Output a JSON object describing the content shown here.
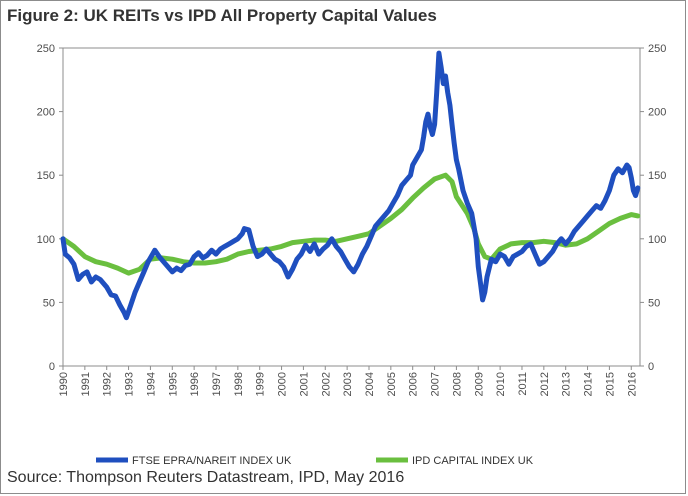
{
  "title": "Figure 2: UK REITs vs IPD All Property Capital Values",
  "source": "Source: Thompson Reuters Datastream, IPD, May 2016",
  "chart_data": {
    "type": "line",
    "title": "Figure 2: UK REITs vs IPD All Property Capital Values",
    "xlabel": "",
    "ylabel": "",
    "xlim": [
      1990,
      2016.4
    ],
    "ylim": [
      0,
      250
    ],
    "y_ticks": [
      0,
      50,
      100,
      150,
      200,
      250
    ],
    "x_ticks": [
      "1990",
      "1991",
      "1992",
      "1993",
      "1994",
      "1995",
      "1996",
      "1997",
      "1998",
      "1999",
      "2000",
      "2001",
      "2002",
      "2003",
      "2004",
      "2005",
      "2006",
      "2007",
      "2008",
      "2009",
      "2010",
      "2011",
      "2012",
      "2013",
      "2014",
      "2015",
      "2016"
    ],
    "y_axis_secondary": true,
    "grid": false,
    "legend_position": "bottom",
    "series": [
      {
        "name": "FTSE EPRA/NAREIT INDEX UK",
        "color": "#1f4fbf",
        "points": [
          [
            1990.0,
            100
          ],
          [
            1990.1,
            88
          ],
          [
            1990.3,
            85
          ],
          [
            1990.5,
            80
          ],
          [
            1990.7,
            68
          ],
          [
            1990.9,
            72
          ],
          [
            1991.1,
            74
          ],
          [
            1991.3,
            66
          ],
          [
            1991.5,
            70
          ],
          [
            1991.7,
            68
          ],
          [
            1992.0,
            62
          ],
          [
            1992.2,
            56
          ],
          [
            1992.4,
            55
          ],
          [
            1992.6,
            48
          ],
          [
            1992.8,
            42
          ],
          [
            1992.9,
            38
          ],
          [
            1993.1,
            48
          ],
          [
            1993.3,
            58
          ],
          [
            1993.5,
            66
          ],
          [
            1993.7,
            74
          ],
          [
            1993.9,
            82
          ],
          [
            1994.1,
            88
          ],
          [
            1994.2,
            91
          ],
          [
            1994.4,
            86
          ],
          [
            1994.6,
            82
          ],
          [
            1994.8,
            78
          ],
          [
            1995.0,
            74
          ],
          [
            1995.2,
            77
          ],
          [
            1995.4,
            75
          ],
          [
            1995.6,
            79
          ],
          [
            1995.8,
            80
          ],
          [
            1996.0,
            86
          ],
          [
            1996.2,
            89
          ],
          [
            1996.4,
            85
          ],
          [
            1996.6,
            87
          ],
          [
            1996.8,
            91
          ],
          [
            1997.0,
            88
          ],
          [
            1997.2,
            92
          ],
          [
            1997.4,
            94
          ],
          [
            1997.6,
            96
          ],
          [
            1997.8,
            98
          ],
          [
            1998.0,
            100
          ],
          [
            1998.2,
            104
          ],
          [
            1998.3,
            108
          ],
          [
            1998.5,
            107
          ],
          [
            1998.7,
            94
          ],
          [
            1998.9,
            86
          ],
          [
            1999.1,
            88
          ],
          [
            1999.3,
            92
          ],
          [
            1999.5,
            88
          ],
          [
            1999.7,
            84
          ],
          [
            1999.9,
            82
          ],
          [
            2000.1,
            78
          ],
          [
            2000.3,
            70
          ],
          [
            2000.5,
            76
          ],
          [
            2000.7,
            84
          ],
          [
            2000.9,
            88
          ],
          [
            2001.1,
            95
          ],
          [
            2001.3,
            90
          ],
          [
            2001.5,
            96
          ],
          [
            2001.7,
            88
          ],
          [
            2001.9,
            92
          ],
          [
            2002.1,
            95
          ],
          [
            2002.3,
            100
          ],
          [
            2002.5,
            94
          ],
          [
            2002.7,
            90
          ],
          [
            2002.9,
            84
          ],
          [
            2003.1,
            78
          ],
          [
            2003.3,
            74
          ],
          [
            2003.5,
            80
          ],
          [
            2003.7,
            88
          ],
          [
            2003.9,
            94
          ],
          [
            2004.1,
            102
          ],
          [
            2004.3,
            110
          ],
          [
            2004.5,
            114
          ],
          [
            2004.7,
            118
          ],
          [
            2004.9,
            122
          ],
          [
            2005.1,
            128
          ],
          [
            2005.3,
            134
          ],
          [
            2005.5,
            142
          ],
          [
            2005.7,
            146
          ],
          [
            2005.9,
            150
          ],
          [
            2006.0,
            158
          ],
          [
            2006.2,
            164
          ],
          [
            2006.4,
            170
          ],
          [
            2006.5,
            180
          ],
          [
            2006.6,
            192
          ],
          [
            2006.7,
            198
          ],
          [
            2006.8,
            188
          ],
          [
            2006.9,
            182
          ],
          [
            2007.0,
            190
          ],
          [
            2007.1,
            215
          ],
          [
            2007.2,
            246
          ],
          [
            2007.3,
            235
          ],
          [
            2007.4,
            222
          ],
          [
            2007.5,
            228
          ],
          [
            2007.6,
            215
          ],
          [
            2007.7,
            205
          ],
          [
            2007.8,
            190
          ],
          [
            2007.9,
            175
          ],
          [
            2008.0,
            162
          ],
          [
            2008.1,
            155
          ],
          [
            2008.3,
            138
          ],
          [
            2008.5,
            128
          ],
          [
            2008.7,
            120
          ],
          [
            2008.9,
            100
          ],
          [
            2009.0,
            78
          ],
          [
            2009.1,
            65
          ],
          [
            2009.2,
            52
          ],
          [
            2009.3,
            58
          ],
          [
            2009.4,
            70
          ],
          [
            2009.6,
            84
          ],
          [
            2009.8,
            82
          ],
          [
            2010.0,
            88
          ],
          [
            2010.2,
            86
          ],
          [
            2010.4,
            80
          ],
          [
            2010.6,
            86
          ],
          [
            2010.8,
            88
          ],
          [
            2011.0,
            90
          ],
          [
            2011.2,
            94
          ],
          [
            2011.4,
            96
          ],
          [
            2011.6,
            88
          ],
          [
            2011.8,
            80
          ],
          [
            2012.0,
            82
          ],
          [
            2012.2,
            86
          ],
          [
            2012.4,
            90
          ],
          [
            2012.6,
            96
          ],
          [
            2012.8,
            100
          ],
          [
            2013.0,
            96
          ],
          [
            2013.2,
            100
          ],
          [
            2013.4,
            106
          ],
          [
            2013.6,
            110
          ],
          [
            2013.8,
            114
          ],
          [
            2014.0,
            118
          ],
          [
            2014.2,
            122
          ],
          [
            2014.4,
            126
          ],
          [
            2014.6,
            124
          ],
          [
            2014.8,
            130
          ],
          [
            2015.0,
            138
          ],
          [
            2015.2,
            150
          ],
          [
            2015.4,
            155
          ],
          [
            2015.6,
            152
          ],
          [
            2015.8,
            158
          ],
          [
            2015.9,
            156
          ],
          [
            2016.0,
            148
          ],
          [
            2016.1,
            138
          ],
          [
            2016.2,
            134
          ],
          [
            2016.3,
            140
          ]
        ]
      },
      {
        "name": "IPD CAPITAL INDEX UK",
        "color": "#6abf3f",
        "points": [
          [
            1990.0,
            100
          ],
          [
            1990.5,
            94
          ],
          [
            1991.0,
            86
          ],
          [
            1991.5,
            82
          ],
          [
            1992.0,
            80
          ],
          [
            1992.5,
            77
          ],
          [
            1993.0,
            73
          ],
          [
            1993.5,
            76
          ],
          [
            1994.0,
            84
          ],
          [
            1994.5,
            85
          ],
          [
            1995.0,
            84
          ],
          [
            1995.5,
            82
          ],
          [
            1996.0,
            81
          ],
          [
            1996.5,
            81
          ],
          [
            1997.0,
            82
          ],
          [
            1997.5,
            84
          ],
          [
            1998.0,
            88
          ],
          [
            1998.5,
            90
          ],
          [
            1999.0,
            91
          ],
          [
            1999.5,
            92
          ],
          [
            2000.0,
            94
          ],
          [
            2000.5,
            97
          ],
          [
            2001.0,
            98
          ],
          [
            2001.5,
            99
          ],
          [
            2002.0,
            99
          ],
          [
            2002.5,
            98
          ],
          [
            2003.0,
            100
          ],
          [
            2003.5,
            102
          ],
          [
            2004.0,
            104
          ],
          [
            2004.5,
            110
          ],
          [
            2005.0,
            116
          ],
          [
            2005.5,
            123
          ],
          [
            2006.0,
            132
          ],
          [
            2006.5,
            140
          ],
          [
            2007.0,
            147
          ],
          [
            2007.5,
            150
          ],
          [
            2007.8,
            145
          ],
          [
            2008.0,
            133
          ],
          [
            2008.5,
            120
          ],
          [
            2008.8,
            108
          ],
          [
            2009.0,
            96
          ],
          [
            2009.3,
            86
          ],
          [
            2009.6,
            84
          ],
          [
            2010.0,
            92
          ],
          [
            2010.5,
            96
          ],
          [
            2011.0,
            97
          ],
          [
            2011.5,
            97
          ],
          [
            2012.0,
            98
          ],
          [
            2012.5,
            97
          ],
          [
            2013.0,
            95
          ],
          [
            2013.5,
            96
          ],
          [
            2014.0,
            100
          ],
          [
            2014.5,
            106
          ],
          [
            2015.0,
            112
          ],
          [
            2015.5,
            116
          ],
          [
            2016.0,
            119
          ],
          [
            2016.3,
            118
          ]
        ]
      }
    ]
  }
}
